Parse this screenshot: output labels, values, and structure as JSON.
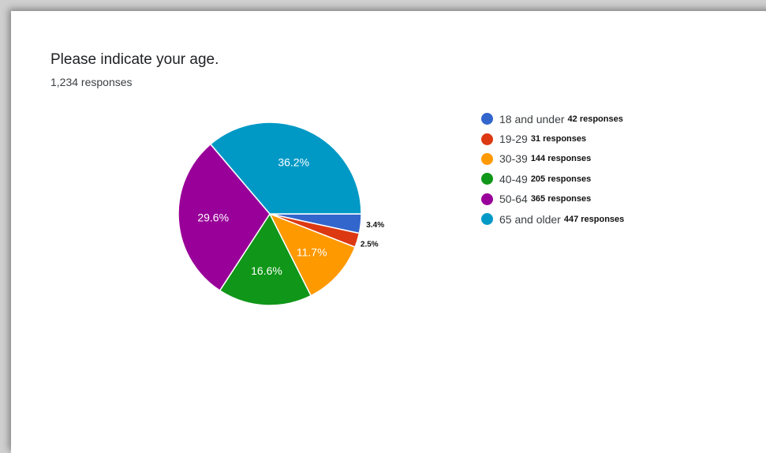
{
  "card": {
    "title": "Please indicate your age.",
    "subtitle": "1,234 responses"
  },
  "chart_data": {
    "type": "pie",
    "title": "Please indicate your age.",
    "subtitle": "1,234 responses",
    "legend_position": "right",
    "slices": [
      {
        "label": "18 and under",
        "count": 42,
        "count_label": "42 responses",
        "percent": 3.4,
        "percent_label": "3.4%",
        "color": "#3366cc",
        "label_outside": true
      },
      {
        "label": "19-29",
        "count": 31,
        "count_label": "31 responses",
        "percent": 2.5,
        "percent_label": "2.5%",
        "color": "#dc3912",
        "label_outside": true
      },
      {
        "label": "30-39",
        "count": 144,
        "count_label": "144 responses",
        "percent": 11.7,
        "percent_label": "11.7%",
        "color": "#ff9900",
        "label_outside": false
      },
      {
        "label": "40-49",
        "count": 205,
        "count_label": "205 responses",
        "percent": 16.6,
        "percent_label": "16.6%",
        "color": "#109618",
        "label_outside": false
      },
      {
        "label": "50-64",
        "count": 365,
        "count_label": "365 responses",
        "percent": 29.6,
        "percent_label": "29.6%",
        "color": "#990099",
        "label_outside": false
      },
      {
        "label": "65 and older",
        "count": 447,
        "count_label": "447 responses",
        "percent": 36.2,
        "percent_label": "36.2%",
        "color": "#0099c6",
        "label_outside": false
      }
    ]
  }
}
